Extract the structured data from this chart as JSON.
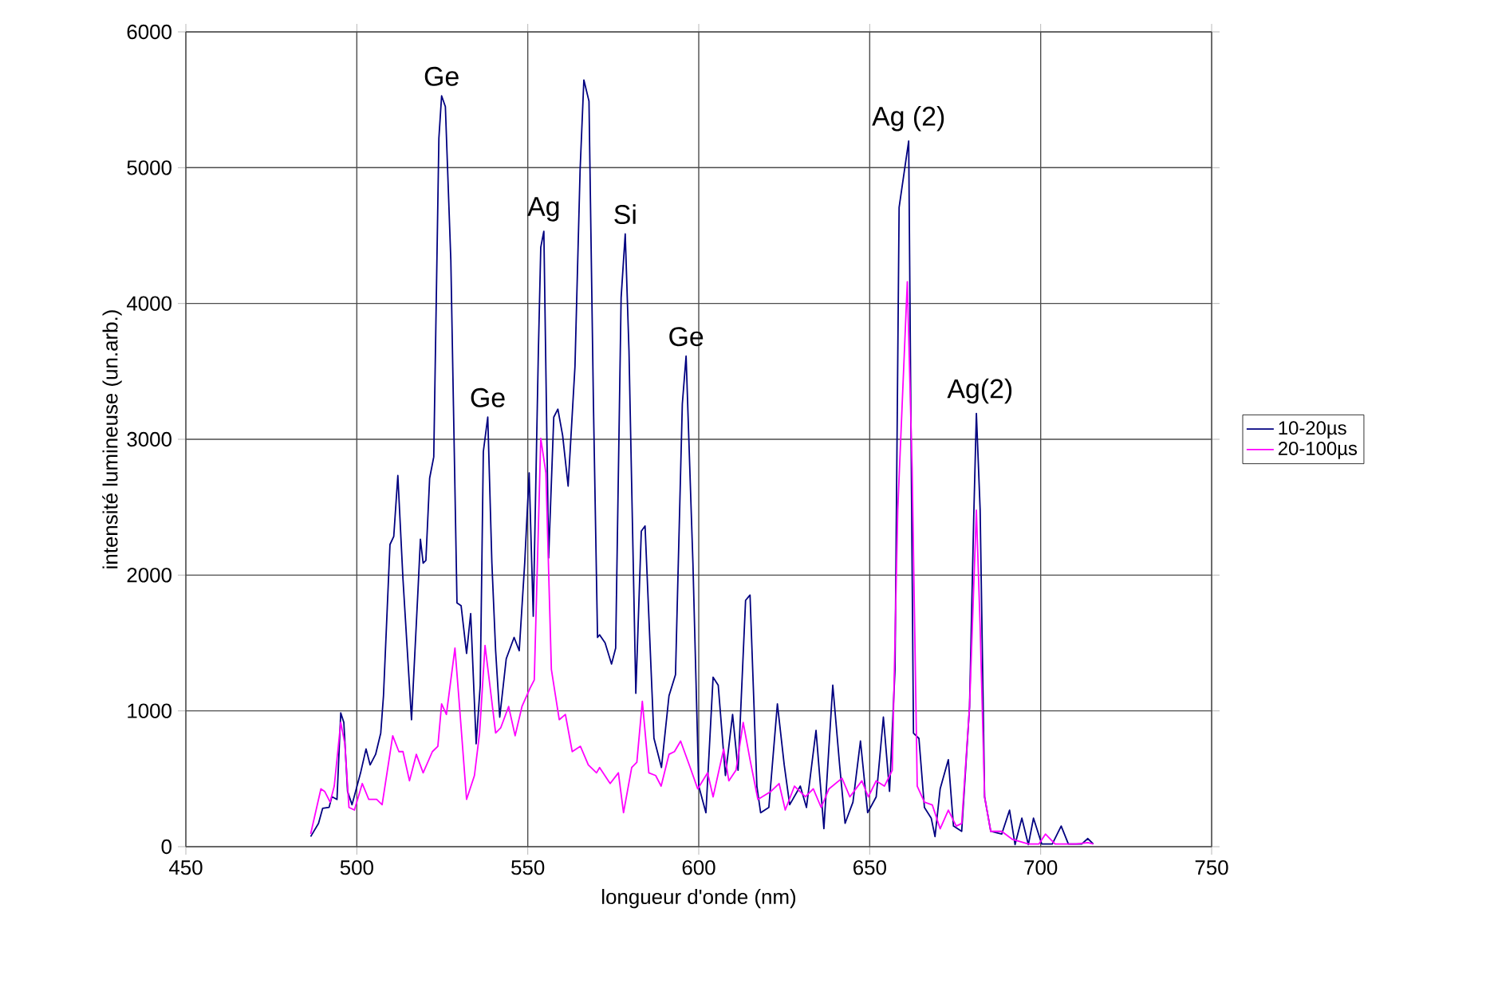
{
  "chart_data": {
    "type": "line",
    "xlabel": "longueur d'onde (nm)",
    "ylabel": "intensité lumineuse (un.arb.)",
    "xlim": [
      450,
      750
    ],
    "xticks": [
      450,
      500,
      550,
      600,
      650,
      700,
      750
    ],
    "ylim": [
      0,
      6000
    ],
    "yticks": [
      0,
      1000,
      2000,
      3000,
      4000,
      5000,
      6000
    ],
    "grid": true,
    "legend": "right",
    "series": [
      {
        "name": "10-20µs",
        "color": "#000080",
        "x": [
          486.5,
          488.8,
          490.0,
          491.9,
          492.7,
          494.2,
          495.3,
          496.2,
          497.3,
          498.6,
          501.1,
          502.7,
          503.9,
          505.5,
          507.0,
          507.8,
          509.7,
          510.8,
          512.0,
          513.5,
          516.0,
          517.9,
          518.6,
          519.4,
          520.2,
          521.3,
          522.5,
          524.0,
          524.8,
          525.9,
          527.5,
          529.3,
          530.5,
          532.1,
          533.3,
          534.9,
          536.1,
          537.0,
          538.3,
          539.5,
          540.6,
          541.8,
          543.7,
          546.0,
          547.5,
          549.1,
          550.4,
          551.6,
          553.1,
          553.8,
          554.7,
          556.1,
          557.6,
          558.8,
          560.2,
          561.8,
          563.8,
          565.3,
          566.4,
          567.9,
          569.2,
          570.4,
          571.0,
          572.6,
          574.5,
          575.7,
          577.3,
          578.5,
          579.6,
          581.6,
          583.2,
          584.3,
          586.9,
          589.1,
          591.3,
          593.2,
          595.2,
          596.3,
          598.3,
          600.0,
          602.1,
          604.2,
          605.7,
          607.8,
          609.9,
          611.5,
          613.7,
          615.0,
          617.0,
          618.1,
          620.5,
          623.0,
          625.0,
          626.6,
          629.7,
          631.5,
          634.3,
          636.6,
          639.2,
          641.2,
          642.8,
          645.1,
          647.3,
          649.4,
          651.9,
          654.0,
          655.8,
          657.4,
          658.6,
          661.4,
          662.8,
          664.4,
          666.0,
          668.0,
          669.1,
          670.6,
          673.0,
          674.5,
          676.9,
          679.2,
          680.4,
          681.2,
          682.3,
          683.6,
          685.4,
          688.6,
          690.9,
          692.5,
          694.5,
          696.4,
          697.9,
          700.3,
          703.4,
          706.0,
          708.1,
          712.0,
          713.8,
          715.4
        ],
        "values": [
          74,
          172,
          282,
          290,
          368,
          348,
          985,
          915,
          407,
          309,
          544,
          720,
          602,
          680,
          837,
          1111,
          2225,
          2284,
          2733,
          1971,
          935,
          1893,
          2264,
          2088,
          2108,
          2714,
          2870,
          5216,
          5529,
          5450,
          4317,
          1795,
          1775,
          1423,
          1717,
          758,
          1189,
          2909,
          3163,
          2088,
          1443,
          954,
          1384,
          1541,
          1443,
          2088,
          2753,
          1697,
          3652,
          4414,
          4532,
          2127,
          3163,
          3222,
          3027,
          2655,
          3535,
          4981,
          5646,
          5490,
          3261,
          1541,
          1560,
          1502,
          1345,
          1462,
          4043,
          4512,
          3652,
          1130,
          2323,
          2362,
          798,
          583,
          1111,
          1267,
          3261,
          3613,
          2088,
          446,
          250,
          1248,
          1189,
          524,
          974,
          563,
          1814,
          1853,
          446,
          250,
          289,
          1052,
          602,
          309,
          446,
          289,
          856,
          133,
          1189,
          602,
          172,
          328,
          778,
          250,
          367,
          954,
          407,
          1306,
          4708,
          5196,
          836,
          797,
          289,
          210,
          74,
          425,
          641,
          152,
          113,
          1031,
          2400,
          3190,
          2478,
          367,
          113,
          93,
          269,
          15,
          210,
          15,
          210,
          20,
          20,
          152,
          20,
          20,
          60,
          20
        ]
      },
      {
        "name": "20-100µs",
        "color": "#ff00ff",
        "x": [
          486.5,
          489.5,
          490.6,
          492.2,
          493.4,
          495.3,
          496.5,
          497.7,
          499.3,
          501.6,
          503.5,
          505.8,
          507.4,
          510.5,
          512.3,
          513.5,
          515.4,
          517.4,
          519.4,
          522.1,
          523.7,
          524.8,
          526.2,
          528.7,
          529.8,
          532.1,
          534.4,
          535.9,
          537.5,
          539.1,
          540.6,
          542.1,
          544.4,
          546.3,
          548.3,
          550.7,
          551.9,
          553.8,
          555.3,
          556.9,
          559.2,
          561.0,
          563.0,
          565.4,
          567.7,
          570.1,
          571.0,
          574.1,
          576.5,
          578.0,
          580.4,
          581.9,
          583.5,
          585.4,
          587.4,
          589.0,
          591.3,
          592.9,
          594.7,
          597.5,
          599.7,
          602.6,
          604.2,
          607.3,
          608.8,
          610.9,
          613.0,
          615.0,
          617.3,
          621.1,
          623.5,
          625.3,
          628.0,
          631.2,
          633.5,
          635.8,
          638.1,
          641.9,
          644.2,
          647.7,
          649.6,
          651.9,
          654.3,
          656.6,
          658.2,
          661.0,
          662.4,
          663.9,
          666.0,
          668.3,
          670.6,
          673.0,
          675.3,
          676.9,
          679.2,
          681.2,
          682.3,
          683.6,
          685.4,
          688.6,
          691.7,
          696.4,
          699.5,
          701.4,
          704.2,
          707.3,
          710.4,
          713.8,
          715.4
        ],
        "values": [
          94,
          426,
          407,
          328,
          446,
          915,
          758,
          289,
          270,
          465,
          348,
          348,
          309,
          817,
          700,
          700,
          485,
          680,
          544,
          700,
          739,
          1052,
          974,
          1463,
          1111,
          348,
          524,
          837,
          1482,
          1150,
          837,
          876,
          1032,
          817,
          1032,
          1169,
          1228,
          3007,
          2753,
          1306,
          935,
          974,
          700,
          739,
          602,
          544,
          583,
          465,
          544,
          250,
          583,
          622,
          1071,
          544,
          524,
          446,
          680,
          700,
          778,
          583,
          426,
          544,
          367,
          720,
          485,
          563,
          915,
          641,
          348,
          407,
          465,
          270,
          446,
          367,
          426,
          289,
          426,
          504,
          367,
          485,
          367,
          485,
          446,
          563,
          2479,
          4160,
          2791,
          445,
          328,
          308,
          132,
          269,
          152,
          171,
          1031,
          2478,
          1618,
          367,
          113,
          113,
          54,
          20,
          20,
          93,
          20,
          20,
          20,
          30,
          20
        ]
      }
    ],
    "annotations": [
      {
        "text": "Ge",
        "x": 524.8,
        "y": 5529
      },
      {
        "text": "Ge",
        "x": 538.3,
        "y": 3163
      },
      {
        "text": "Ag",
        "x": 554.7,
        "y": 4532
      },
      {
        "text": "Si",
        "x": 578.5,
        "y": 4512
      },
      {
        "text": "Ge",
        "x": 596.3,
        "y": 3613
      },
      {
        "text": "Ag (2)",
        "x": 661.4,
        "y": 5196
      },
      {
        "text": "Ag(2)",
        "x": 682.3,
        "y": 3190
      }
    ]
  }
}
